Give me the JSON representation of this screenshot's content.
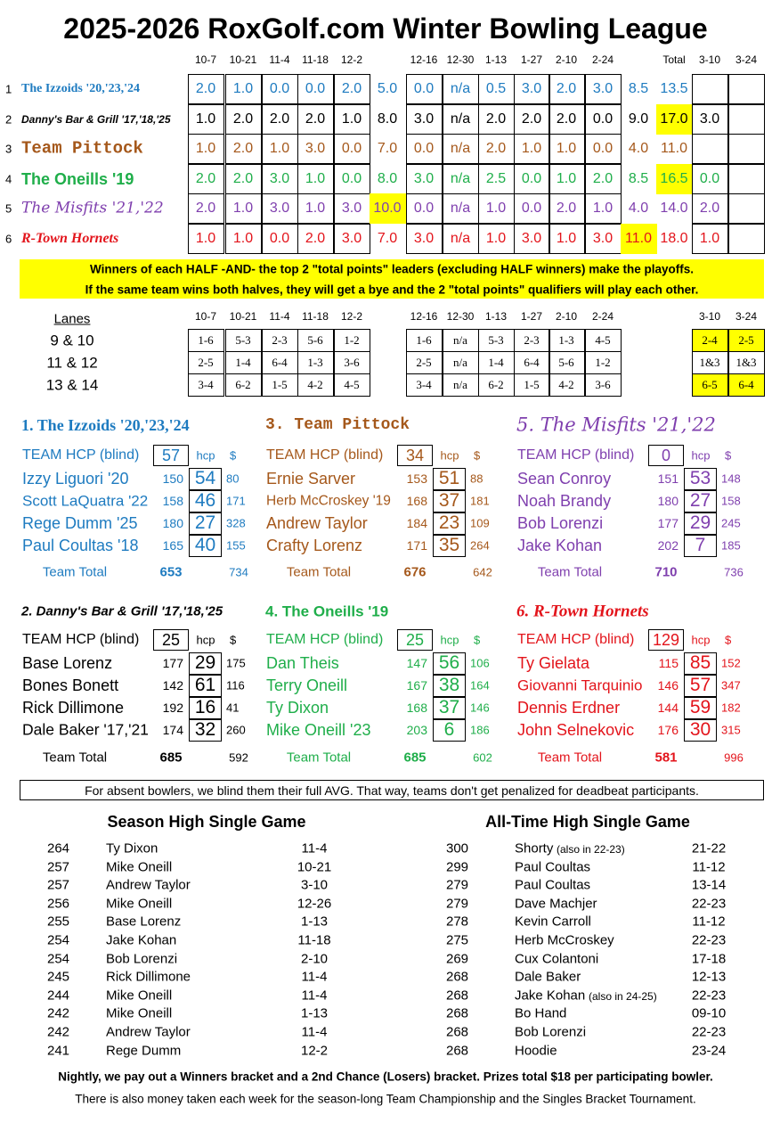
{
  "title": "2025-2026 RoxGolf.com Winter Bowling League",
  "standings": {
    "dates": [
      "10-7",
      "10-21",
      "11-4",
      "11-18",
      "12-2",
      "12-16",
      "12-30",
      "1-13",
      "1-27",
      "2-10",
      "2-24"
    ],
    "total_header": "Total",
    "playoff_dates": [
      "3-10",
      "3-24"
    ],
    "rows": [
      {
        "number": 1,
        "name": "The Izzoids '20,'23,'24",
        "first_half": [
          "2.0",
          "1.0",
          "0.0",
          "0.0",
          "2.0"
        ],
        "first_half_total": "5.0",
        "second_half": [
          "0.0",
          "n/a",
          "0.5",
          "3.0",
          "2.0",
          "3.0"
        ],
        "second_half_total": "8.5",
        "total": "13.5",
        "playoffs": []
      },
      {
        "number": 2,
        "name": "Danny's Bar & Grill '17,'18,'25",
        "first_half": [
          "1.0",
          "2.0",
          "2.0",
          "2.0",
          "1.0"
        ],
        "first_half_total": "8.0",
        "second_half": [
          "3.0",
          "n/a",
          "2.0",
          "2.0",
          "2.0",
          "0.0"
        ],
        "second_half_total": "9.0",
        "total": "17.0",
        "playoffs": [
          "3.0"
        ]
      },
      {
        "number": 3,
        "name": "Team Pittock",
        "first_half": [
          "1.0",
          "2.0",
          "1.0",
          "3.0",
          "0.0"
        ],
        "first_half_total": "7.0",
        "second_half": [
          "0.0",
          "n/a",
          "2.0",
          "1.0",
          "1.0",
          "0.0"
        ],
        "second_half_total": "4.0",
        "total": "11.0",
        "playoffs": []
      },
      {
        "number": 4,
        "name": "The Oneills '19",
        "first_half": [
          "2.0",
          "2.0",
          "3.0",
          "1.0",
          "0.0"
        ],
        "first_half_total": "8.0",
        "second_half": [
          "3.0",
          "n/a",
          "2.5",
          "0.0",
          "1.0",
          "2.0"
        ],
        "second_half_total": "8.5",
        "total": "16.5",
        "playoffs": [
          "0.0"
        ]
      },
      {
        "number": 5,
        "name": "The Misfits '21,'22",
        "first_half": [
          "2.0",
          "1.0",
          "3.0",
          "1.0",
          "3.0"
        ],
        "first_half_total": "10.0",
        "second_half": [
          "0.0",
          "n/a",
          "1.0",
          "0.0",
          "2.0",
          "1.0"
        ],
        "second_half_total": "4.0",
        "total": "14.0",
        "playoffs": [
          "2.0"
        ]
      },
      {
        "number": 6,
        "name": "R-Town Hornets",
        "first_half": [
          "1.0",
          "1.0",
          "0.0",
          "2.0",
          "3.0"
        ],
        "first_half_total": "7.0",
        "second_half": [
          "3.0",
          "n/a",
          "1.0",
          "3.0",
          "1.0",
          "3.0"
        ],
        "second_half_total": "11.0",
        "total": "18.0",
        "playoffs": [
          "1.0"
        ]
      }
    ]
  },
  "rules": [
    "Winners of each HALF  -AND-  the top 2 \"total points\" leaders (excluding HALF winners) make the playoffs.",
    "If the same team wins both halves, they will get a bye and the 2 \"total points\" qualifiers will play each other."
  ],
  "lanes": {
    "header": "Lanes",
    "rows": [
      {
        "lanes": "9 & 10",
        "first_half": [
          "1-6",
          "5-3",
          "2-3",
          "5-6",
          "1-2"
        ],
        "second_half": [
          "1-6",
          "n/a",
          "5-3",
          "2-3",
          "1-3",
          "4-5"
        ],
        "playoffs": [
          "2-4",
          "2-5"
        ]
      },
      {
        "lanes": "11 & 12",
        "first_half": [
          "2-5",
          "1-4",
          "6-4",
          "1-3",
          "3-6"
        ],
        "second_half": [
          "2-5",
          "n/a",
          "1-4",
          "6-4",
          "5-6",
          "1-2"
        ],
        "playoffs": [
          "1&3",
          "1&3"
        ]
      },
      {
        "lanes": "13 & 14",
        "first_half": [
          "3-4",
          "6-2",
          "1-5",
          "4-2",
          "4-5"
        ],
        "second_half": [
          "3-4",
          "n/a",
          "6-2",
          "1-5",
          "4-2",
          "3-6"
        ],
        "playoffs": [
          "6-5",
          "6-4"
        ]
      }
    ]
  },
  "teams": [
    {
      "title": "1. The Izzoids '20,'23,'24",
      "color": "#1e7bc0",
      "hcp_label": "TEAM HCP (blind)",
      "team_hcp": 57,
      "hcp_header": "hcp",
      "money_header": "$",
      "bowlers": [
        {
          "name": "Izzy Liguori '20",
          "avg": 150,
          "hcp": 54,
          "money": 80
        },
        {
          "name": "Scott LaQuatra '22",
          "avg": 158,
          "hcp": 46,
          "money": 171
        },
        {
          "name": "Rege Dumm '25",
          "avg": 180,
          "hcp": 27,
          "money": 328
        },
        {
          "name": "Paul Coultas '18",
          "avg": 165,
          "hcp": 40,
          "money": 155
        }
      ],
      "total_label": "Team Total",
      "total_avg": 653,
      "total_money": 734
    },
    {
      "title": "2. Danny's Bar & Grill '17,'18,'25",
      "color": "#000000",
      "hcp_label": "TEAM HCP (blind)",
      "team_hcp": 25,
      "hcp_header": "hcp",
      "money_header": "$",
      "bowlers": [
        {
          "name": "Base Lorenz",
          "avg": 177,
          "hcp": 29,
          "money": 175
        },
        {
          "name": "Bones Bonett",
          "avg": 142,
          "hcp": 61,
          "money": 116
        },
        {
          "name": "Rick Dillimone",
          "avg": 192,
          "hcp": 16,
          "money": 41
        },
        {
          "name": "Dale Baker '17,'21",
          "avg": 174,
          "hcp": 32,
          "money": 260
        }
      ],
      "total_label": "Team Total",
      "total_avg": 685,
      "total_money": 592
    },
    {
      "title": "3. Team Pittock",
      "color": "#a5581b",
      "hcp_label": "TEAM HCP (blind)",
      "team_hcp": 34,
      "hcp_header": "hcp",
      "money_header": "$",
      "bowlers": [
        {
          "name": "Ernie Sarver",
          "avg": 153,
          "hcp": 51,
          "money": 88
        },
        {
          "name": "Herb McCroskey '19",
          "avg": 168,
          "hcp": 37,
          "money": 181
        },
        {
          "name": "Andrew Taylor",
          "avg": 184,
          "hcp": 23,
          "money": 109
        },
        {
          "name": "Crafty Lorenz",
          "avg": 171,
          "hcp": 35,
          "money": 264
        }
      ],
      "total_label": "Team Total",
      "total_avg": 676,
      "total_money": 642
    },
    {
      "title": "4. The Oneills '19",
      "color": "#1fae4a",
      "hcp_label": "TEAM HCP (blind)",
      "team_hcp": 25,
      "hcp_header": "hcp",
      "money_header": "$",
      "bowlers": [
        {
          "name": "Dan Theis",
          "avg": 147,
          "hcp": 56,
          "money": 106
        },
        {
          "name": "Terry Oneill",
          "avg": 167,
          "hcp": 38,
          "money": 164
        },
        {
          "name": "Ty Dixon",
          "avg": 168,
          "hcp": 37,
          "money": 146
        },
        {
          "name": "Mike Oneill '23",
          "avg": 203,
          "hcp": 6,
          "money": 186
        }
      ],
      "total_label": "Team Total",
      "total_avg": 685,
      "total_money": 602
    },
    {
      "title": "5. The Misfits '21,'22",
      "color": "#7f3fae",
      "hcp_label": "TEAM HCP (blind)",
      "team_hcp": 0,
      "hcp_header": "hcp",
      "money_header": "$",
      "bowlers": [
        {
          "name": "Sean Conroy",
          "avg": 151,
          "hcp": 53,
          "money": 148
        },
        {
          "name": "Noah Brandy",
          "avg": 180,
          "hcp": 27,
          "money": 158
        },
        {
          "name": "Bob Lorenzi",
          "avg": 177,
          "hcp": 29,
          "money": 245
        },
        {
          "name": "Jake Kohan",
          "avg": 202,
          "hcp": 7,
          "money": 185
        }
      ],
      "total_label": "Team Total",
      "total_avg": 710,
      "total_money": 736
    },
    {
      "title": "6. R-Town Hornets",
      "color": "#e3141b",
      "hcp_label": "TEAM HCP (blind)",
      "team_hcp": 129,
      "hcp_header": "hcp",
      "money_header": "$",
      "bowlers": [
        {
          "name": "Ty Gielata",
          "avg": 115,
          "hcp": 85,
          "money": 152
        },
        {
          "name": "Giovanni Tarquinio",
          "avg": 146,
          "hcp": 57,
          "money": 347
        },
        {
          "name": "Dennis Erdner",
          "avg": 144,
          "hcp": 59,
          "money": 182
        },
        {
          "name": "John Selnekovic",
          "avg": 176,
          "hcp": 30,
          "money": 315
        }
      ],
      "total_label": "Team Total",
      "total_avg": 581,
      "total_money": 996
    }
  ],
  "note": "For absent bowlers, we blind them their full AVG.  That way, teams don't get penalized for deadbeat participants.",
  "season_high": {
    "title": "Season High Single Game",
    "rows": [
      {
        "score": 264,
        "name": "Ty Dixon",
        "date": "11-4"
      },
      {
        "score": 257,
        "name": "Mike Oneill",
        "date": "10-21"
      },
      {
        "score": 257,
        "name": "Andrew Taylor",
        "date": "3-10"
      },
      {
        "score": 256,
        "name": "Mike Oneill",
        "date": "12-26"
      },
      {
        "score": 255,
        "name": "Base Lorenz",
        "date": "1-13"
      },
      {
        "score": 254,
        "name": "Jake Kohan",
        "date": "11-18"
      },
      {
        "score": 254,
        "name": "Bob Lorenzi",
        "date": "2-10"
      },
      {
        "score": 245,
        "name": "Rick Dillimone",
        "date": "11-4"
      },
      {
        "score": 244,
        "name": "Mike Oneill",
        "date": "11-4"
      },
      {
        "score": 242,
        "name": "Mike Oneill",
        "date": "1-13"
      },
      {
        "score": 242,
        "name": "Andrew Taylor",
        "date": "11-4"
      },
      {
        "score": 241,
        "name": "Rege Dumm",
        "date": "12-2"
      }
    ]
  },
  "all_time_high": {
    "title": "All-Time High Single Game",
    "rows": [
      {
        "score": 300,
        "name": "Shorty",
        "note": "(also in 22-23)",
        "date": "21-22"
      },
      {
        "score": 299,
        "name": "Paul Coultas",
        "date": "11-12"
      },
      {
        "score": 279,
        "name": "Paul Coultas",
        "date": "13-14"
      },
      {
        "score": 279,
        "name": "Dave Machjer",
        "date": "22-23"
      },
      {
        "score": 278,
        "name": "Kevin Carroll",
        "date": "11-12"
      },
      {
        "score": 275,
        "name": "Herb McCroskey",
        "date": "22-23"
      },
      {
        "score": 269,
        "name": "Cux Colantoni",
        "date": "17-18"
      },
      {
        "score": 268,
        "name": "Dale Baker",
        "date": "12-13"
      },
      {
        "score": 268,
        "name": "Jake Kohan",
        "note": "(also in 24-25)",
        "date": "22-23"
      },
      {
        "score": 268,
        "name": "Bo Hand",
        "date": "09-10"
      },
      {
        "score": 268,
        "name": "Bob Lorenzi",
        "date": "22-23"
      },
      {
        "score": 268,
        "name": "Hoodie",
        "date": "23-24"
      }
    ]
  },
  "footer": [
    "Nightly, we pay out a Winners bracket and a 2nd Chance (Losers) bracket.  Prizes total $18 per participating bowler.",
    "There is also money taken each week for the season-long Team Championship and the Singles Bracket Tournament."
  ]
}
